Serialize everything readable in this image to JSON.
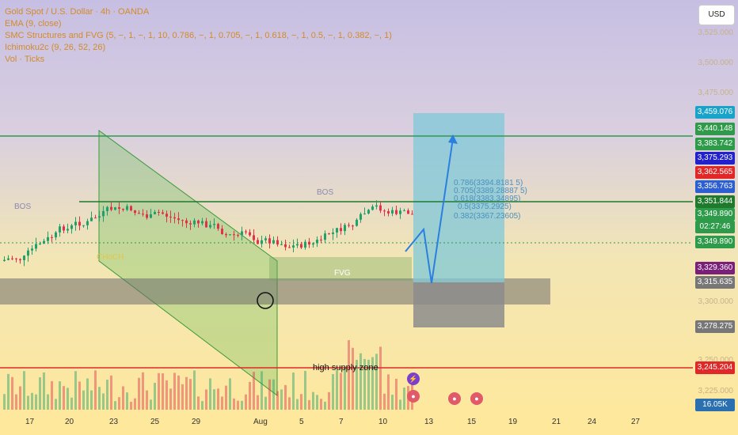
{
  "legend": {
    "title": "Gold Spot / U.S. Dollar · 4h · OANDA",
    "ema": "EMA (9, close)",
    "smc": "SMC Structures and FVG (5, −, 1, −, 1, 10, 0.786, −, 1, 0.705, −, 1, 0.618, −, 1, 0.5, −, 1, 0.382, −, 1)",
    "ichimoku": "Ichimoku2c (9, 26, 52, 26)",
    "vol": "Vol · Ticks"
  },
  "currency_button": "USD",
  "price_ticks": [
    "3,525.000",
    "3,500.000",
    "3,475.000",
    "3,300.000",
    "3,250.000",
    "3,225.000"
  ],
  "price_badges": [
    {
      "label": "3,459.076",
      "color": "#1aa3c8"
    },
    {
      "label": "3,440.148",
      "color": "#2e9b4a"
    },
    {
      "label": "3,383.742",
      "color": "#2e9b4a"
    },
    {
      "label": "3,375.293",
      "color": "#2222cc"
    },
    {
      "label": "3,362.565",
      "color": "#e02828"
    },
    {
      "label": "3,356.763",
      "color": "#2d5fd0"
    },
    {
      "label": "3,351.844",
      "color": "#1f7a2e"
    },
    {
      "label": "3,349.890",
      "color": "#2e9b4a"
    },
    {
      "label": "02:27:46",
      "color": "#2e9b4a"
    },
    {
      "label": "3,349.890",
      "color": "#2e9b4a"
    },
    {
      "label": "3,329.360",
      "color": "#7a1f7a"
    },
    {
      "label": "3,315.635",
      "color": "#777777"
    },
    {
      "label": "3,278.275",
      "color": "#777777"
    },
    {
      "label": "3,245.204",
      "color": "#e02828"
    },
    {
      "label": "16.05K",
      "color": "#2a6fb0"
    }
  ],
  "time_ticks": [
    "17",
    "20",
    "23",
    "25",
    "29",
    "Aug",
    "5",
    "7",
    "10",
    "13",
    "15",
    "19",
    "21",
    "24",
    "27"
  ],
  "annotations": {
    "supply_zone": "high supply zone",
    "fvg": "FVG",
    "bos": "BOS",
    "choch": "CHoCH"
  },
  "fib_levels": [
    "0.786(3394.8181 5)",
    "0.705(3389.28887 5)",
    "0.618(3383.34895)",
    "0.5(3375.2925)",
    "0.382(3367.23605)"
  ],
  "colors": {
    "up_candle": "#22a06b",
    "down_candle": "#e0324b",
    "target_box": "#7fc8d8",
    "stop_box": "#8c8c8c",
    "zone_box": "#777777",
    "support_line": "#2e9b4a",
    "resistance_line": "#e02828",
    "projection": "#2a7fe0"
  }
}
